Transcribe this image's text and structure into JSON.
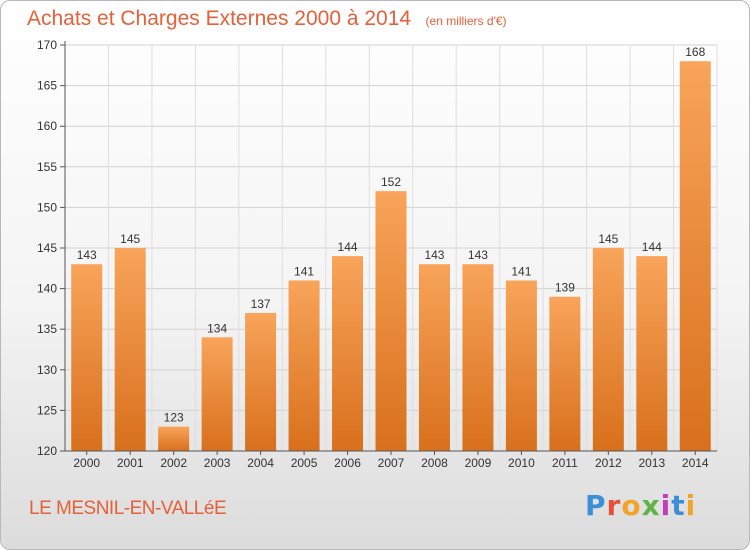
{
  "header": {
    "title": "Achats et Charges Externes 2000 à 2014",
    "subtitle": "(en milliers d'€)"
  },
  "footer": {
    "commune": "LE MESNIL-EN-VALLéE",
    "brand": "Proxiti"
  },
  "colors": {
    "accent": "#e6603a",
    "bar_top": "#f8a45a",
    "bar_bottom": "#d8701c"
  },
  "chart_data": {
    "type": "bar",
    "categories": [
      "2000",
      "2001",
      "2002",
      "2003",
      "2004",
      "2005",
      "2006",
      "2007",
      "2008",
      "2009",
      "2010",
      "2011",
      "2012",
      "2013",
      "2014"
    ],
    "values": [
      143,
      145,
      123,
      134,
      137,
      141,
      144,
      152,
      143,
      143,
      141,
      139,
      145,
      144,
      168
    ],
    "ylim": [
      120,
      170
    ],
    "yticks": [
      120,
      125,
      130,
      135,
      140,
      145,
      150,
      155,
      160,
      165,
      170
    ],
    "grid": true,
    "data_labels": true
  }
}
